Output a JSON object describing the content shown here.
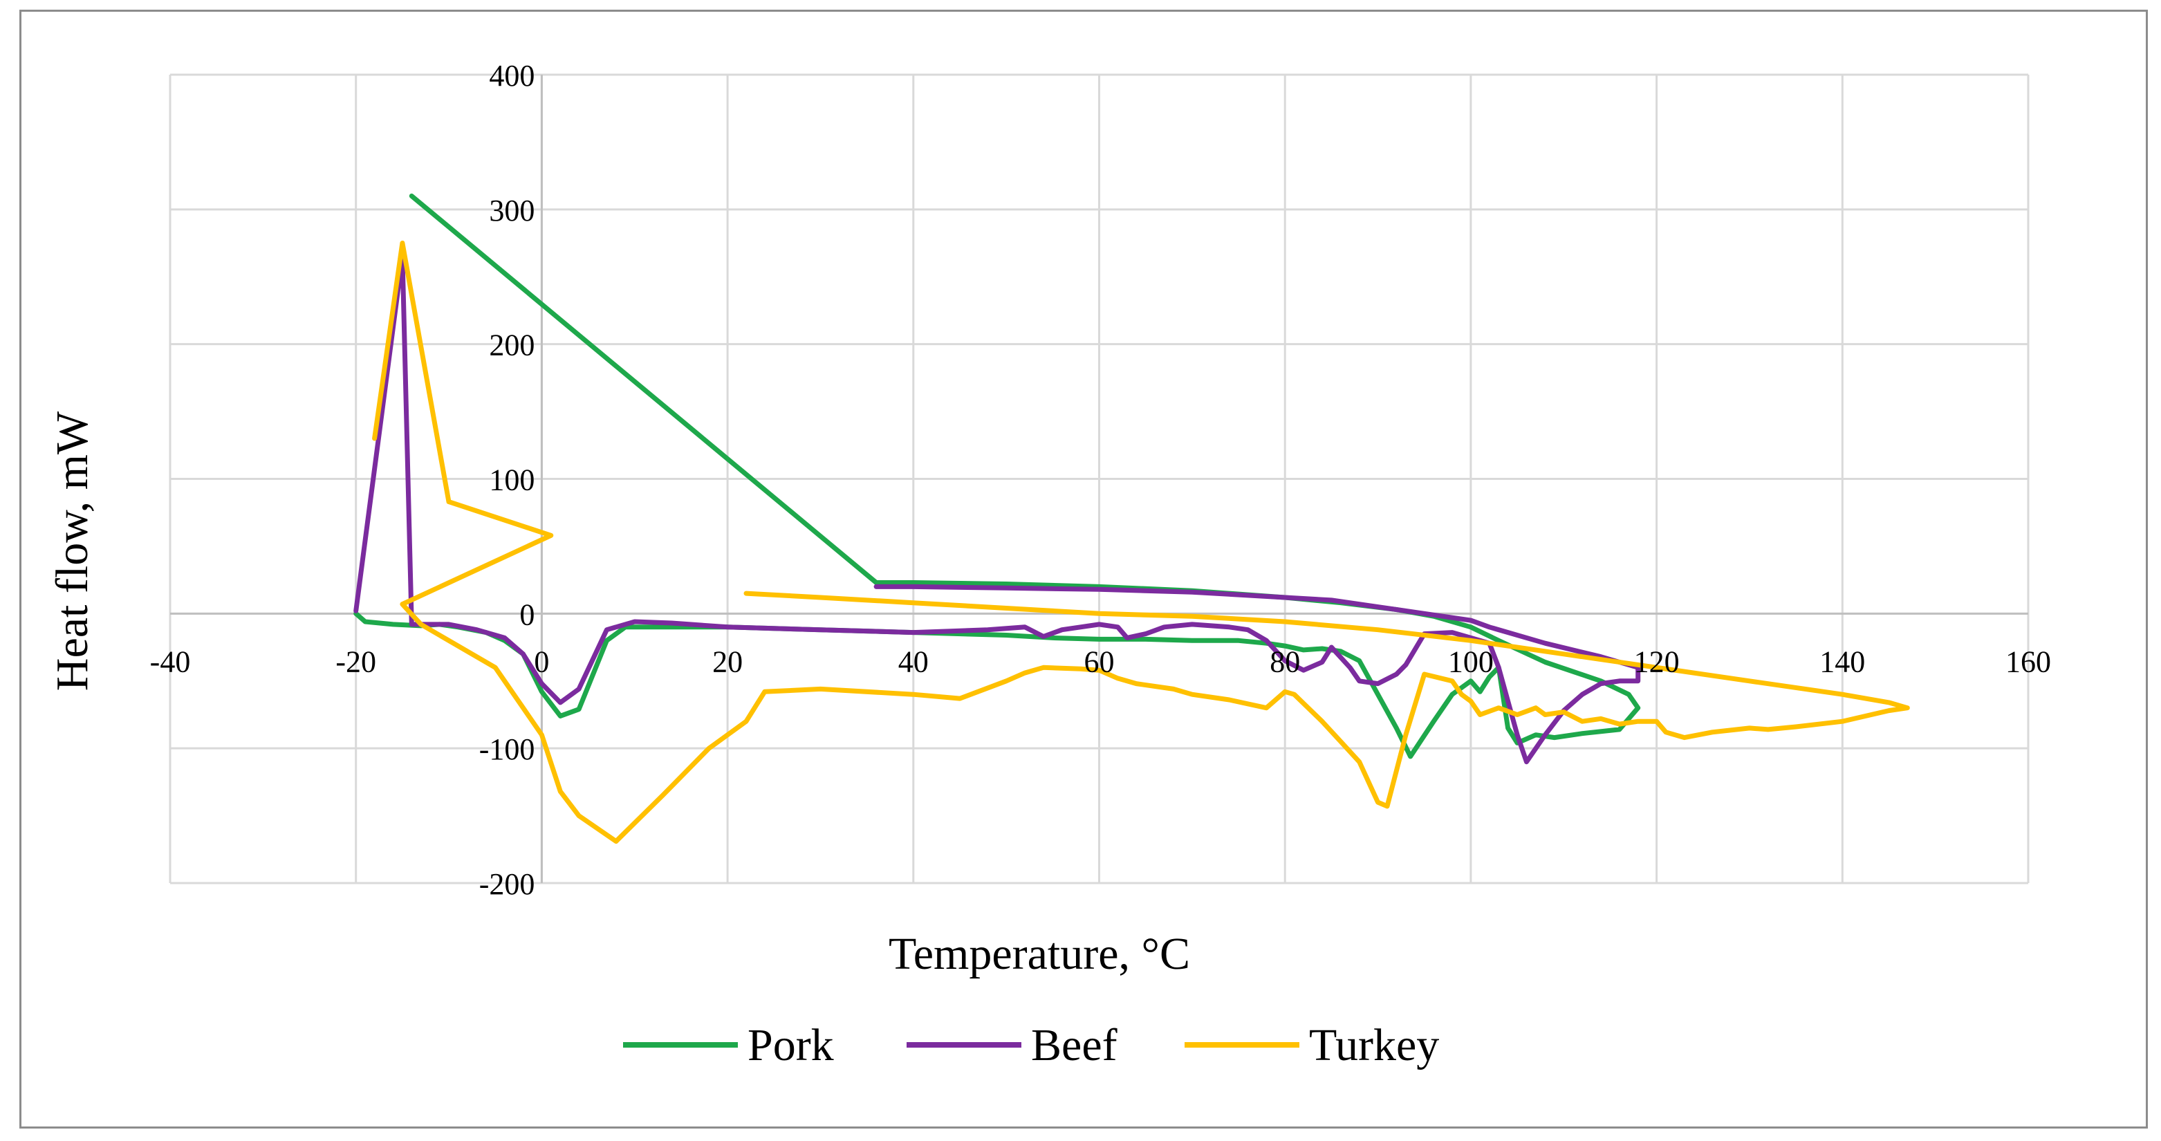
{
  "chart_data": {
    "type": "line",
    "title": "",
    "xlabel": "Temperature, °C",
    "ylabel": "Heat flow, mW",
    "xlim": [
      -40,
      160
    ],
    "ylim": [
      -200,
      400
    ],
    "x_ticks": [
      -40,
      -20,
      0,
      20,
      40,
      60,
      80,
      100,
      120,
      140,
      160
    ],
    "y_ticks": [
      -200,
      -100,
      0,
      100,
      200,
      300,
      400
    ],
    "x_tick_labels": [
      "-40",
      "-20",
      "0",
      "20",
      "40",
      "60",
      "80",
      "100",
      "120",
      "140",
      "160"
    ],
    "y_tick_labels": [
      "-200",
      "-100",
      "0",
      "100",
      "200",
      "300",
      "400"
    ],
    "grid": true,
    "legend_position": "bottom",
    "series": [
      {
        "name": "Pork",
        "color": "#1ea84b",
        "points": [
          [
            -20,
            0
          ],
          [
            -19,
            -6
          ],
          [
            -16,
            -8
          ],
          [
            -13,
            -9
          ],
          [
            -11,
            -8
          ],
          [
            -9,
            -10
          ],
          [
            -6,
            -14
          ],
          [
            -4,
            -20
          ],
          [
            -2,
            -30
          ],
          [
            0,
            -58
          ],
          [
            2,
            -76
          ],
          [
            4,
            -71
          ],
          [
            7,
            -20
          ],
          [
            9,
            -10
          ],
          [
            14,
            -10
          ],
          [
            20,
            -10
          ],
          [
            30,
            -12
          ],
          [
            40,
            -14
          ],
          [
            50,
            -16
          ],
          [
            55,
            -18
          ],
          [
            60,
            -19
          ],
          [
            65,
            -19
          ],
          [
            70,
            -20
          ],
          [
            75,
            -20
          ],
          [
            78,
            -22
          ],
          [
            80,
            -24
          ],
          [
            82,
            -27
          ],
          [
            84,
            -26
          ],
          [
            86,
            -28
          ],
          [
            88,
            -35
          ],
          [
            90,
            -60
          ],
          [
            92,
            -85
          ],
          [
            93.5,
            -106
          ],
          [
            96,
            -80
          ],
          [
            98,
            -60
          ],
          [
            100,
            -50
          ],
          [
            101,
            -58
          ],
          [
            102,
            -47
          ],
          [
            103,
            -40
          ],
          [
            104,
            -85
          ],
          [
            105,
            -96
          ],
          [
            107,
            -90
          ],
          [
            109,
            -92
          ],
          [
            112,
            -89
          ],
          [
            116,
            -86
          ],
          [
            118,
            -70
          ],
          [
            117,
            -60
          ],
          [
            114,
            -50
          ],
          [
            108,
            -36
          ],
          [
            103,
            -20
          ],
          [
            100,
            -10
          ],
          [
            96,
            -2
          ],
          [
            92,
            3
          ],
          [
            86,
            8
          ],
          [
            80,
            12
          ],
          [
            70,
            17
          ],
          [
            60,
            20
          ],
          [
            50,
            22
          ],
          [
            40,
            23
          ],
          [
            36,
            23
          ],
          [
            -14,
            310
          ]
        ]
      },
      {
        "name": "Beef",
        "color": "#7b2b9e",
        "points": [
          [
            -20,
            2
          ],
          [
            -15,
            265
          ],
          [
            -14,
            -8
          ],
          [
            -12,
            -8
          ],
          [
            -10,
            -8
          ],
          [
            -7,
            -12
          ],
          [
            -4,
            -18
          ],
          [
            -2,
            -30
          ],
          [
            0,
            -52
          ],
          [
            2,
            -66
          ],
          [
            4,
            -56
          ],
          [
            7,
            -12
          ],
          [
            10,
            -6
          ],
          [
            14,
            -7
          ],
          [
            20,
            -10
          ],
          [
            30,
            -12
          ],
          [
            40,
            -14
          ],
          [
            44,
            -13
          ],
          [
            48,
            -12
          ],
          [
            50,
            -11
          ],
          [
            52,
            -10
          ],
          [
            54,
            -17
          ],
          [
            56,
            -12
          ],
          [
            58,
            -10
          ],
          [
            60,
            -8
          ],
          [
            62,
            -10
          ],
          [
            63,
            -18
          ],
          [
            65,
            -15
          ],
          [
            67,
            -10
          ],
          [
            70,
            -8
          ],
          [
            74,
            -10
          ],
          [
            76,
            -12
          ],
          [
            78,
            -20
          ],
          [
            80,
            -35
          ],
          [
            82,
            -42
          ],
          [
            84,
            -36
          ],
          [
            85,
            -25
          ],
          [
            87,
            -40
          ],
          [
            88,
            -50
          ],
          [
            90,
            -52
          ],
          [
            92,
            -45
          ],
          [
            93,
            -38
          ],
          [
            95,
            -15
          ],
          [
            98,
            -14
          ],
          [
            100,
            -18
          ],
          [
            102,
            -22
          ],
          [
            103,
            -40
          ],
          [
            105,
            -90
          ],
          [
            106,
            -110
          ],
          [
            108,
            -90
          ],
          [
            110,
            -72
          ],
          [
            112,
            -60
          ],
          [
            114,
            -52
          ],
          [
            116,
            -50
          ],
          [
            118,
            -50
          ],
          [
            118,
            -40
          ],
          [
            114,
            -32
          ],
          [
            108,
            -22
          ],
          [
            102,
            -10
          ],
          [
            100,
            -5
          ],
          [
            95,
            0
          ],
          [
            90,
            5
          ],
          [
            85,
            10
          ],
          [
            80,
            12
          ],
          [
            70,
            16
          ],
          [
            60,
            18
          ],
          [
            50,
            19
          ],
          [
            40,
            20
          ],
          [
            36,
            20
          ]
        ]
      },
      {
        "name": "Turkey",
        "color": "#ffc000",
        "points": [
          [
            -18,
            130
          ],
          [
            -15,
            275
          ],
          [
            -10,
            83
          ],
          [
            1,
            58
          ],
          [
            -15,
            7
          ],
          [
            -13,
            -8
          ],
          [
            -10,
            -20
          ],
          [
            -5,
            -40
          ],
          [
            -3,
            -60
          ],
          [
            0,
            -90
          ],
          [
            2,
            -132
          ],
          [
            4,
            -150
          ],
          [
            8,
            -169
          ],
          [
            13,
            -135
          ],
          [
            18,
            -100
          ],
          [
            22,
            -80
          ],
          [
            24,
            -58
          ],
          [
            30,
            -56
          ],
          [
            40,
            -60
          ],
          [
            45,
            -63
          ],
          [
            50,
            -50
          ],
          [
            52,
            -44
          ],
          [
            54,
            -40
          ],
          [
            58,
            -41
          ],
          [
            60,
            -42
          ],
          [
            62,
            -48
          ],
          [
            64,
            -52
          ],
          [
            68,
            -56
          ],
          [
            70,
            -60
          ],
          [
            74,
            -64
          ],
          [
            78,
            -70
          ],
          [
            80,
            -58
          ],
          [
            81,
            -60
          ],
          [
            84,
            -80
          ],
          [
            86,
            -95
          ],
          [
            88,
            -110
          ],
          [
            90,
            -140
          ],
          [
            91,
            -143
          ],
          [
            93,
            -90
          ],
          [
            95,
            -45
          ],
          [
            98,
            -50
          ],
          [
            99,
            -60
          ],
          [
            100,
            -65
          ],
          [
            101,
            -75
          ],
          [
            103,
            -70
          ],
          [
            105,
            -75
          ],
          [
            107,
            -70
          ],
          [
            108,
            -75
          ],
          [
            110,
            -73
          ],
          [
            112,
            -80
          ],
          [
            114,
            -78
          ],
          [
            116,
            -82
          ],
          [
            118,
            -80
          ],
          [
            120,
            -80
          ],
          [
            121,
            -88
          ],
          [
            123,
            -92
          ],
          [
            126,
            -88
          ],
          [
            130,
            -85
          ],
          [
            132,
            -86
          ],
          [
            135,
            -84
          ],
          [
            140,
            -80
          ],
          [
            145,
            -72
          ],
          [
            147,
            -70
          ],
          [
            145,
            -66
          ],
          [
            140,
            -60
          ],
          [
            130,
            -50
          ],
          [
            120,
            -40
          ],
          [
            110,
            -30
          ],
          [
            100,
            -20
          ],
          [
            90,
            -12
          ],
          [
            80,
            -6
          ],
          [
            70,
            -2
          ],
          [
            60,
            0
          ],
          [
            50,
            4
          ],
          [
            40,
            8
          ],
          [
            30,
            12
          ],
          [
            22,
            15
          ]
        ]
      }
    ]
  }
}
